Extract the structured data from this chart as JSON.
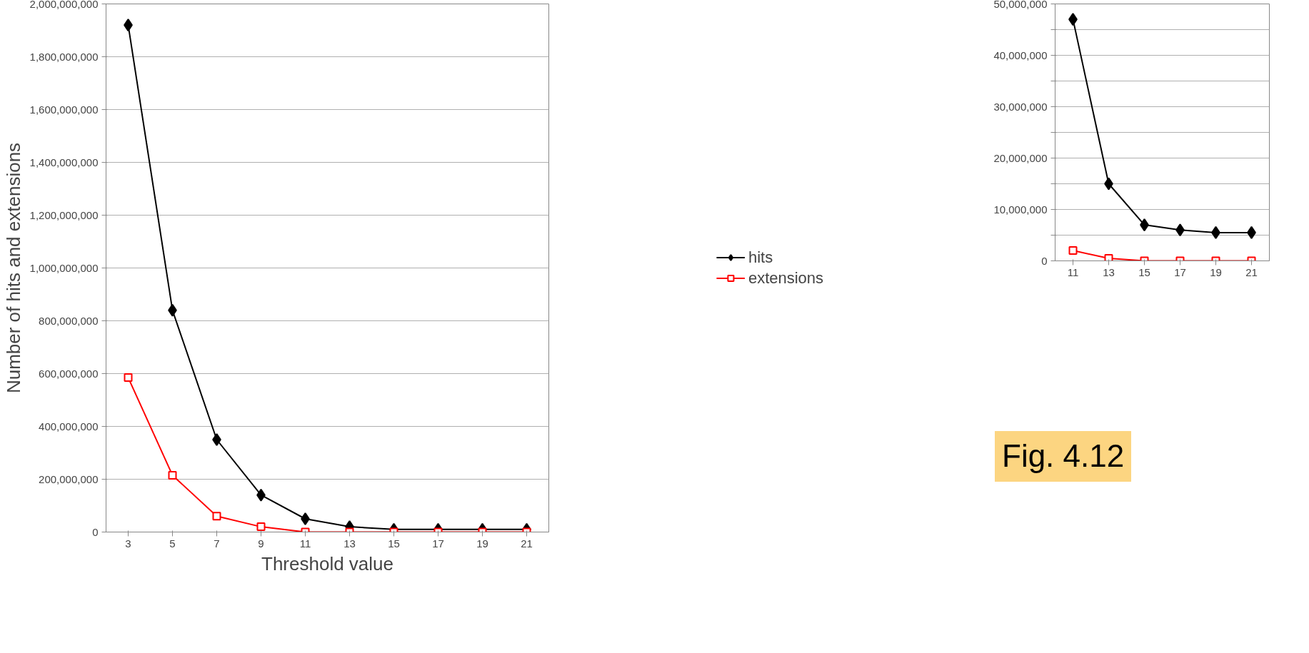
{
  "chart_data": [
    {
      "type": "line",
      "xlabel": "Threshold value",
      "ylabel": "Number of hits and extensions",
      "categories": [
        "3",
        "5",
        "7",
        "9",
        "11",
        "13",
        "15",
        "17",
        "19",
        "21"
      ],
      "series": [
        {
          "name": "hits",
          "color": "#000000",
          "marker": "diamond",
          "values": [
            1920000000,
            840000000,
            350000000,
            140000000,
            50000000,
            20000000,
            10000000,
            10000000,
            10000000,
            10000000
          ]
        },
        {
          "name": "extensions",
          "color": "#ff0000",
          "marker": "square",
          "values": [
            585000000,
            215000000,
            60000000,
            20000000,
            0,
            0,
            0,
            0,
            0,
            0
          ]
        }
      ],
      "ylim": [
        0,
        2000000000
      ],
      "yticks": [
        {
          "value": 0,
          "label": "0"
        },
        {
          "value": 200000000,
          "label": "200,000,000"
        },
        {
          "value": 400000000,
          "label": "400,000,000"
        },
        {
          "value": 600000000,
          "label": "600,000,000"
        },
        {
          "value": 800000000,
          "label": "800,000,000"
        },
        {
          "value": 1000000000,
          "label": "1,000,000,000"
        },
        {
          "value": 1200000000,
          "label": "1,200,000,000"
        },
        {
          "value": 1400000000,
          "label": "1,400,000,000"
        },
        {
          "value": 1600000000,
          "label": "1,600,000,000"
        },
        {
          "value": 1800000000,
          "label": "1,800,000,000"
        },
        {
          "value": 2000000000,
          "label": "2,000,000,000"
        }
      ],
      "grid": "y",
      "legend": "right",
      "annotations": [
        "Fig. 4.12"
      ]
    },
    {
      "type": "line",
      "categories": [
        "11",
        "13",
        "15",
        "17",
        "19",
        "21"
      ],
      "series": [
        {
          "color": "#000000",
          "marker": "diamond",
          "values": [
            47000000,
            15000000,
            7000000,
            6000000,
            5500000,
            5500000
          ]
        },
        {
          "color": "#ff0000",
          "marker": "square",
          "values": [
            2000000,
            500000,
            0,
            0,
            0,
            0
          ]
        }
      ],
      "ylim": [
        0,
        50000000
      ],
      "yticks": [
        {
          "value": 0,
          "label": "0"
        },
        {
          "value": 5000000,
          "label": null
        },
        {
          "value": 10000000,
          "label": "10,000,000"
        },
        {
          "value": 15000000,
          "label": null
        },
        {
          "value": 20000000,
          "label": "20,000,000"
        },
        {
          "value": 25000000,
          "label": null
        },
        {
          "value": 30000000,
          "label": "30,000,000"
        },
        {
          "value": 35000000,
          "label": null
        },
        {
          "value": 40000000,
          "label": "40,000,000"
        },
        {
          "value": 45000000,
          "label": null
        },
        {
          "value": 50000000,
          "label": "50,000,000"
        }
      ],
      "grid": "y",
      "legend": false
    }
  ]
}
